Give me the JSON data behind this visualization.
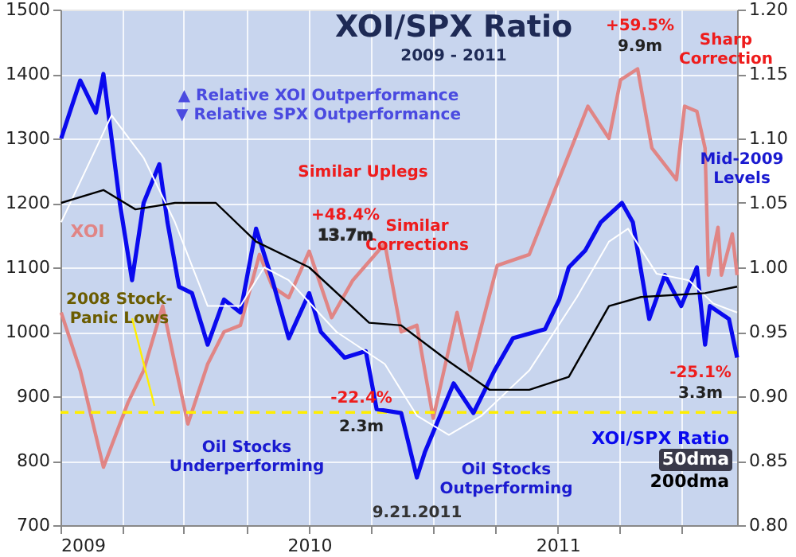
{
  "chart_data": {
    "type": "line",
    "title": "XOI/SPX Ratio",
    "subtitle": "2009 - 2011",
    "xlim": [
      "2009-01-01",
      "2011-09-21"
    ],
    "xticks": [
      {
        "value": "2009-01-01",
        "label": "2009"
      },
      {
        "value": "2009-04-01",
        "label": null
      },
      {
        "value": "2009-07-01",
        "label": null
      },
      {
        "value": "2009-10-01",
        "label": null
      },
      {
        "value": "2010-01-01",
        "label": "2010"
      },
      {
        "value": "2010-04-01",
        "label": null
      },
      {
        "value": "2010-07-01",
        "label": null
      },
      {
        "value": "2010-10-01",
        "label": null
      },
      {
        "value": "2011-01-01",
        "label": "2011"
      },
      {
        "value": "2011-04-01",
        "label": null
      },
      {
        "value": "2011-07-01",
        "label": null
      }
    ],
    "ylim": [
      700,
      1500
    ],
    "yticks": [
      700,
      800,
      900,
      1000,
      1100,
      1200,
      1300,
      1400,
      1500
    ],
    "y2lim": [
      0.8,
      1.2
    ],
    "y2ticks": [
      {
        "value": 0.8,
        "label": "0.80"
      },
      {
        "value": 0.85,
        "label": "0.85"
      },
      {
        "value": 0.9,
        "label": "0.90"
      },
      {
        "value": 0.95,
        "label": "0.95"
      },
      {
        "value": 1.0,
        "label": "1.00"
      },
      {
        "value": 1.05,
        "label": "1.05"
      },
      {
        "value": 1.1,
        "label": "1.10"
      },
      {
        "value": 1.15,
        "label": "1.15"
      },
      {
        "value": 1.2,
        "label": "1.20"
      }
    ],
    "grid": true,
    "series": [
      {
        "name": "XOI",
        "color": "#e08585",
        "x": [
          "2009-01-02",
          "2009-01-30",
          "2009-03-05",
          "2009-04-10",
          "2009-05-03",
          "2009-05-31",
          "2009-06-18",
          "2009-07-07",
          "2009-08-05",
          "2009-08-29",
          "2009-09-22",
          "2009-10-20",
          "2009-11-08",
          "2009-12-02",
          "2010-01-01",
          "2010-02-03",
          "2010-03-06",
          "2010-04-22",
          "2010-05-16",
          "2010-06-08",
          "2010-07-02",
          "2010-08-06",
          "2010-08-25",
          "2010-10-04",
          "2010-11-20",
          "2011-01-05",
          "2011-02-14",
          "2011-03-17",
          "2011-04-03",
          "2011-04-28",
          "2011-05-19",
          "2011-06-24",
          "2011-07-06",
          "2011-07-24",
          "2011-08-05",
          "2011-08-10",
          "2011-08-24",
          "2011-08-29",
          "2011-09-14",
          "2011-09-21"
        ],
        "values": [
          1030,
          940,
          790,
          890,
          940,
          1040,
          950,
          857,
          950,
          1000,
          1010,
          1120,
          1070,
          1053,
          1125,
          1022,
          1080,
          1137,
          1000,
          1010,
          866,
          1030,
          940,
          1103,
          1120,
          1243,
          1350,
          1300,
          1391,
          1408,
          1285,
          1236,
          1350,
          1342,
          1285,
          1088,
          1162,
          1088,
          1152,
          1088
        ]
      },
      {
        "name": "XOI/SPX Ratio",
        "color": "#0a0aee",
        "axis": "y2",
        "x": [
          "2009-01-02",
          "2009-01-30",
          "2009-02-22",
          "2009-03-05",
          "2009-03-17",
          "2009-03-29",
          "2009-04-16",
          "2009-05-03",
          "2009-05-26",
          "2009-06-07",
          "2009-06-24",
          "2009-07-13",
          "2009-08-05",
          "2009-08-29",
          "2009-09-22",
          "2009-10-15",
          "2009-11-08",
          "2009-12-02",
          "2010-01-01",
          "2010-01-18",
          "2010-02-22",
          "2010-03-25",
          "2010-04-10",
          "2010-05-16",
          "2010-06-08",
          "2010-06-20",
          "2010-08-01",
          "2010-08-30",
          "2010-09-30",
          "2010-10-27",
          "2010-12-13",
          "2011-01-03",
          "2011-01-17",
          "2011-02-10",
          "2011-03-05",
          "2011-04-05",
          "2011-04-21",
          "2011-05-15",
          "2011-06-07",
          "2011-07-01",
          "2011-07-24",
          "2011-08-05",
          "2011-08-12",
          "2011-09-09",
          "2011-09-21"
        ],
        "values": [
          1.1,
          1.145,
          1.12,
          1.15,
          1.1,
          1.05,
          0.99,
          1.05,
          1.08,
          1.035,
          0.985,
          0.98,
          0.94,
          0.975,
          0.965,
          1.03,
          0.99,
          0.945,
          0.98,
          0.95,
          0.93,
          0.935,
          0.89,
          0.887,
          0.837,
          0.857,
          0.91,
          0.887,
          0.92,
          0.945,
          0.952,
          0.975,
          1.0,
          1.013,
          1.035,
          1.05,
          1.035,
          0.96,
          0.994,
          0.97,
          1.0,
          0.94,
          0.97,
          0.96,
          0.93
        ]
      },
      {
        "name": "50dma",
        "color": "#ffffff",
        "axis": "y2",
        "x": [
          "2009-01-02",
          "2009-03-17",
          "2009-05-03",
          "2009-06-18",
          "2009-08-05",
          "2009-09-22",
          "2009-10-27",
          "2009-12-02",
          "2010-02-10",
          "2010-04-22",
          "2010-06-08",
          "2010-07-25",
          "2010-09-11",
          "2010-11-20",
          "2011-01-29",
          "2011-03-17",
          "2011-04-14",
          "2011-05-26",
          "2011-07-12",
          "2011-08-17",
          "2011-09-21"
        ],
        "values": [
          1.035,
          1.118,
          1.085,
          1.035,
          0.97,
          0.97,
          1.0,
          0.99,
          0.95,
          0.925,
          0.885,
          0.87,
          0.885,
          0.92,
          0.977,
          1.02,
          1.03,
          0.995,
          0.99,
          0.972,
          0.965
        ]
      },
      {
        "name": "200dma",
        "color": "#000000",
        "axis": "y2",
        "x": [
          "2009-01-02",
          "2009-03-05",
          "2009-04-21",
          "2009-06-18",
          "2009-08-17",
          "2009-10-15",
          "2010-01-01",
          "2010-03-30",
          "2010-05-16",
          "2010-07-25",
          "2010-09-23",
          "2010-11-20",
          "2011-01-17",
          "2011-03-17",
          "2011-05-03",
          "2011-08-05",
          "2011-09-21"
        ],
        "values": [
          1.05,
          1.06,
          1.045,
          1.05,
          1.05,
          1.02,
          1.0,
          0.957,
          0.955,
          0.927,
          0.905,
          0.905,
          0.915,
          0.97,
          0.977,
          0.98,
          0.985
        ]
      }
    ],
    "ref_lines": [
      {
        "axis": "y",
        "value": 875,
        "label": "2008 Stock-\nPanic Lows",
        "color": "#ffee00",
        "line_style": "dashed"
      }
    ],
    "annotations": [
      "▲ Relative XOI Outperformance",
      "▼ Relative SPX Outperformance",
      "Similar Uplegs",
      "Similar\nCorrections",
      "+48.4%",
      "13.7m",
      "-22.4%",
      "2.3m",
      "+59.5%",
      "9.9m",
      "-25.1%",
      "3.3m",
      "Sharp\nCorrection",
      "Mid-2009\nLevels",
      "Oil Stocks\nUnderperforming",
      "Oil Stocks\nOutperforming",
      "9.21.2011"
    ]
  }
}
